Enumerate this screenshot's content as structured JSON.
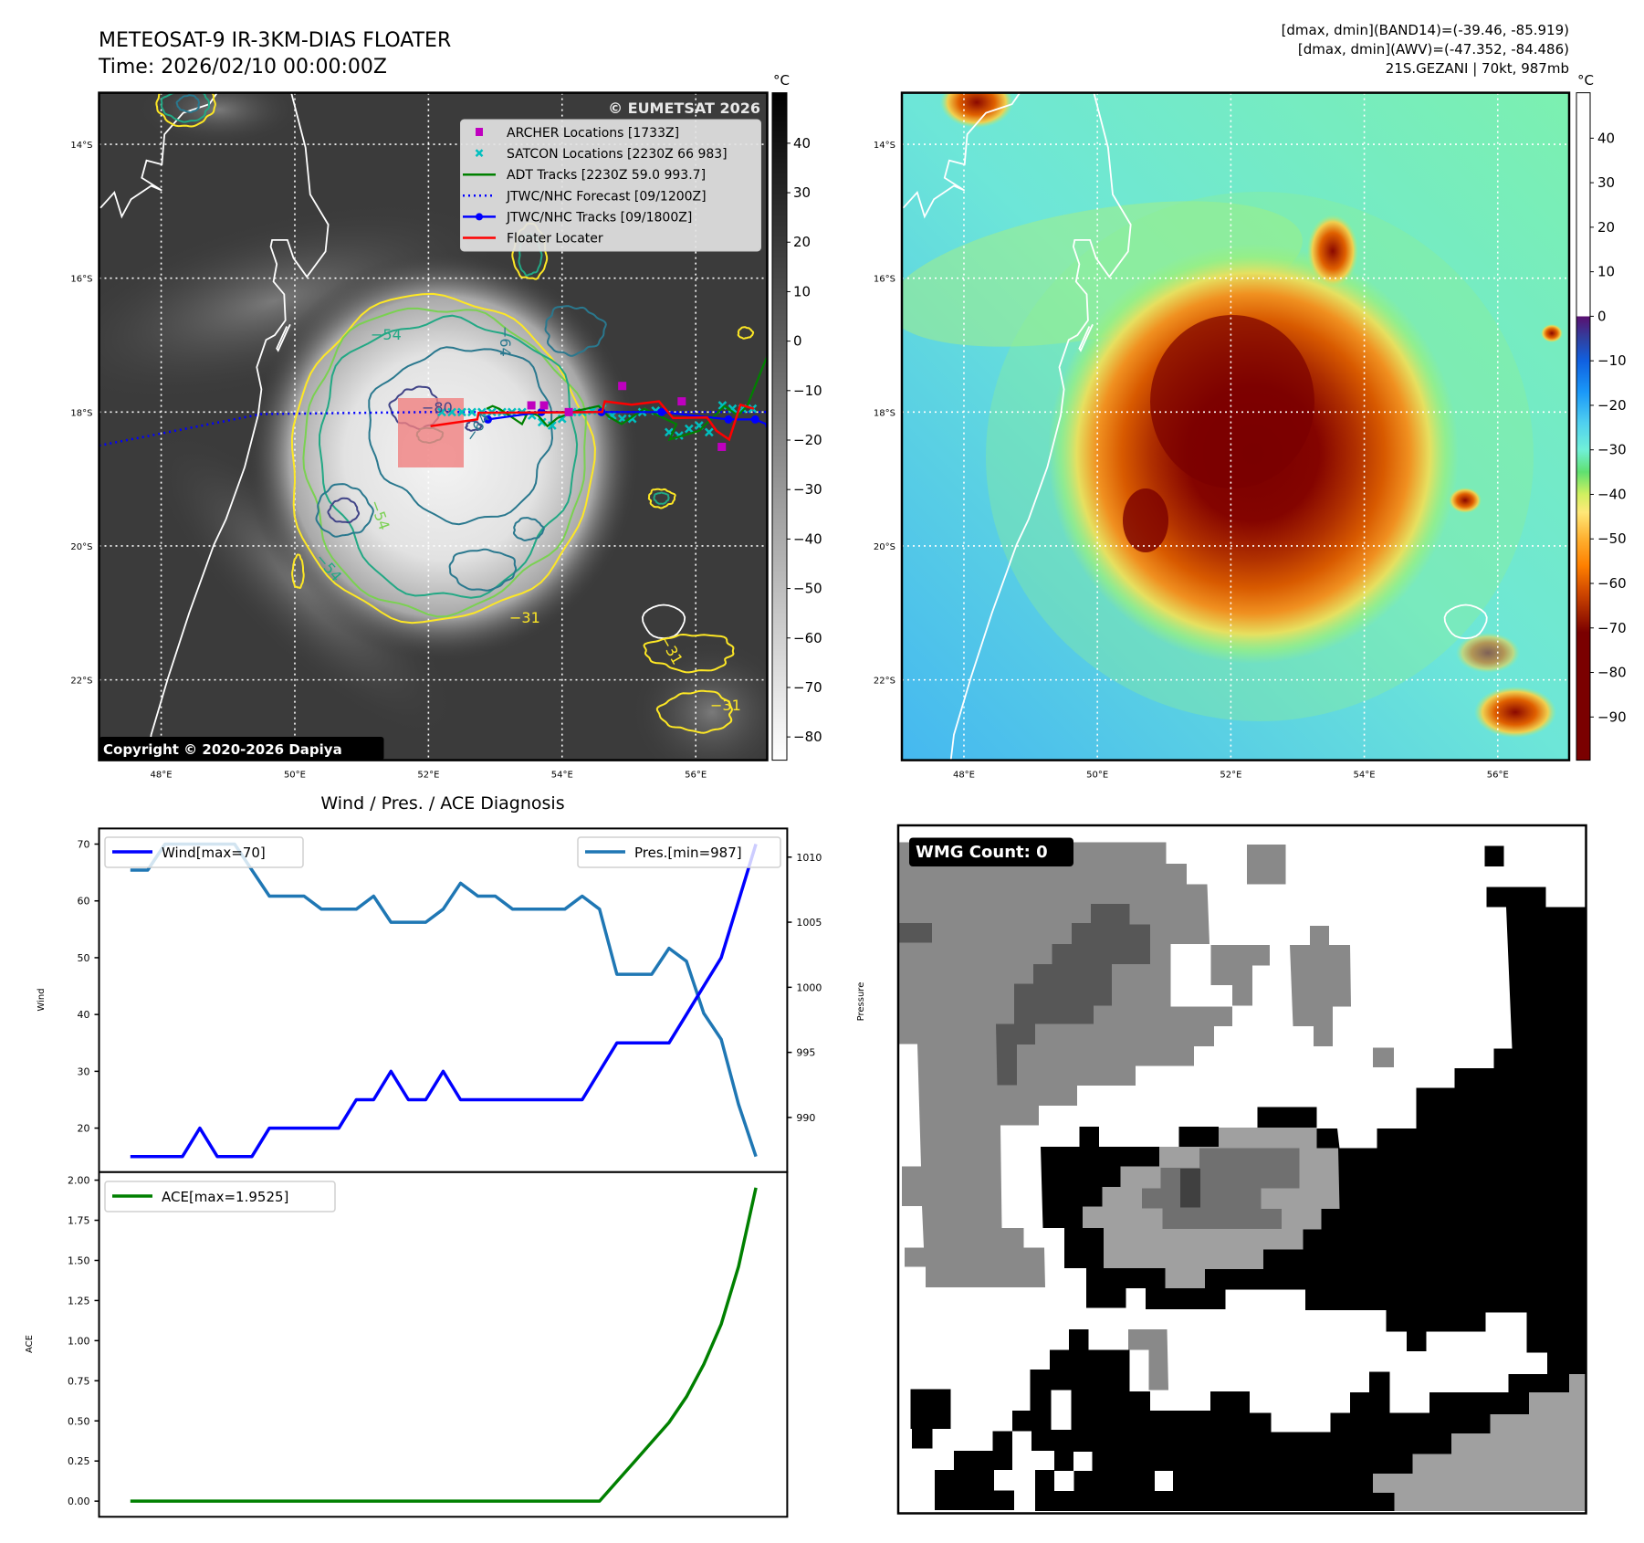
{
  "header": {
    "title_line1": "METEOSAT-9 IR-3KM-DIAS FLOATER",
    "title_line2": "Time: 2026/02/10 00:00:00Z",
    "info_lines": [
      "[dmax, dmin](BAND14)=(-39.46, -85.919)",
      "[dmax, dmin](AWV)=(-47.352, -84.486)",
      "21S.GEZANI | 70kt, 987mb"
    ]
  },
  "maps": {
    "extent": {
      "lon": [
        47.07,
        57.07
      ],
      "lat": [
        -23.2,
        -13.23
      ]
    },
    "lon_ticks": [
      {
        "v": 48,
        "label": "48°E"
      },
      {
        "v": 50,
        "label": "50°E"
      },
      {
        "v": 52,
        "label": "52°E"
      },
      {
        "v": 54,
        "label": "54°E"
      },
      {
        "v": 56,
        "label": "56°E"
      }
    ],
    "lat_ticks": [
      {
        "v": -14,
        "label": "14°S"
      },
      {
        "v": -16,
        "label": "16°S"
      },
      {
        "v": -18,
        "label": "18°S"
      },
      {
        "v": -20,
        "label": "20°S"
      },
      {
        "v": -22,
        "label": "22°S"
      }
    ]
  },
  "left_map": {
    "watermark": "© EUMETSAT 2026",
    "copyright": "Copyright © 2020-2026 Dapiya",
    "contour_labels": [
      "−54",
      "−64",
      "−64",
      "−54",
      "−54",
      "−31",
      "−31",
      "−31",
      "−80"
    ],
    "legend": [
      {
        "label": "ARCHER Locations [1733Z]",
        "marker": "square",
        "color": "#bf00bf"
      },
      {
        "label": "SATCON Locations [2230Z 66 983]",
        "marker": "x",
        "color": "#00bfbf"
      },
      {
        "label": "ADT Tracks [2230Z 59.0 993.7]",
        "marker": "line",
        "color": "#008000"
      },
      {
        "label": "JTWC/NHC Forecast [09/1200Z]",
        "marker": "dotted",
        "color": "#0000ff"
      },
      {
        "label": "JTWC/NHC Tracks [09/1800Z]",
        "marker": "line-dot",
        "color": "#0000ff"
      },
      {
        "label": "Floater Locater",
        "marker": "line",
        "color": "#ff0000"
      }
    ],
    "colorbar": {
      "unit": "°C",
      "range": [
        -84.7,
        50.2
      ],
      "ticks": [
        {
          "v": 40,
          "label": "40"
        },
        {
          "v": 30,
          "label": "30"
        },
        {
          "v": 20,
          "label": "20"
        },
        {
          "v": 10,
          "label": "10"
        },
        {
          "v": 0,
          "label": "0"
        },
        {
          "v": -10,
          "label": "−10"
        },
        {
          "v": -20,
          "label": "−20"
        },
        {
          "v": -30,
          "label": "−30"
        },
        {
          "v": -40,
          "label": "−40"
        },
        {
          "v": -50,
          "label": "−50"
        },
        {
          "v": -60,
          "label": "−60"
        },
        {
          "v": -70,
          "label": "−70"
        },
        {
          "v": -80,
          "label": "−80"
        }
      ]
    },
    "archer": [
      [
        53.54,
        -17.9
      ],
      [
        53.73,
        -17.9
      ],
      [
        54.1,
        -18.0
      ],
      [
        54.9,
        -17.61
      ],
      [
        55.79,
        -17.84
      ],
      [
        56.39,
        -18.52
      ]
    ],
    "satcon": [
      [
        52.2,
        -18.0
      ],
      [
        52.35,
        -18.0
      ],
      [
        52.5,
        -18.0
      ],
      [
        52.65,
        -18.0
      ],
      [
        52.8,
        -18.0
      ],
      [
        52.95,
        -18.0
      ],
      [
        53.1,
        -18.0
      ],
      [
        53.25,
        -18.0
      ],
      [
        53.4,
        -18.0
      ],
      [
        53.55,
        -18.05
      ],
      [
        53.7,
        -18.15
      ],
      [
        53.85,
        -18.2
      ],
      [
        54.0,
        -18.1
      ],
      [
        54.15,
        -18.0
      ],
      [
        54.3,
        -18.0
      ],
      [
        54.45,
        -17.98
      ],
      [
        54.6,
        -17.95
      ],
      [
        54.75,
        -18.05
      ],
      [
        54.9,
        -18.1
      ],
      [
        55.05,
        -18.1
      ],
      [
        55.2,
        -18.0
      ],
      [
        55.4,
        -17.98
      ],
      [
        55.6,
        -18.3
      ],
      [
        55.75,
        -18.35
      ],
      [
        55.9,
        -18.25
      ],
      [
        56.05,
        -18.2
      ],
      [
        56.2,
        -18.3
      ],
      [
        56.4,
        -17.9
      ],
      [
        56.55,
        -17.95
      ],
      [
        56.7,
        -17.95
      ],
      [
        56.85,
        -17.95
      ]
    ],
    "adt": [
      [
        52.87,
        -17.95
      ],
      [
        52.96,
        -17.91
      ],
      [
        53.06,
        -17.95
      ],
      [
        53.4,
        -18.18
      ],
      [
        53.49,
        -18.0
      ],
      [
        53.64,
        -18.05
      ],
      [
        53.78,
        -18.21
      ],
      [
        53.93,
        -18.09
      ],
      [
        54.22,
        -17.98
      ],
      [
        54.55,
        -17.91
      ],
      [
        54.7,
        -18.07
      ],
      [
        54.89,
        -18.18
      ],
      [
        55.23,
        -17.95
      ],
      [
        55.71,
        -18.18
      ],
      [
        55.61,
        -18.41
      ],
      [
        56.05,
        -18.28
      ],
      [
        56.43,
        -17.91
      ],
      [
        56.63,
        -18.05
      ],
      [
        56.77,
        -17.91
      ],
      [
        57.01,
        -17.31
      ],
      [
        57.1,
        -17.1
      ]
    ],
    "jtwc_forecast": [
      [
        47.07,
        -18.5
      ],
      [
        49.5,
        -18.03
      ],
      [
        52.0,
        -18.0
      ],
      [
        57.07,
        -18.0
      ]
    ],
    "jtwc_track": [
      [
        52.89,
        -18.11
      ],
      [
        53.69,
        -18.0
      ],
      [
        54.59,
        -18.0
      ],
      [
        55.49,
        -18.0
      ],
      [
        56.49,
        -18.11
      ],
      [
        56.89,
        -18.11
      ],
      [
        57.1,
        -18.2
      ]
    ],
    "floater": [
      [
        52.03,
        -18.21
      ],
      [
        52.73,
        -18.11
      ],
      [
        52.75,
        -18.01
      ],
      [
        54.6,
        -18.0
      ],
      [
        54.64,
        -17.84
      ],
      [
        55.04,
        -17.89
      ],
      [
        55.45,
        -17.84
      ],
      [
        55.66,
        -18.09
      ],
      [
        56.17,
        -18.08
      ],
      [
        56.31,
        -18.28
      ],
      [
        56.5,
        -18.41
      ],
      [
        56.67,
        -17.89
      ],
      [
        56.87,
        -17.95
      ]
    ]
  },
  "right_map": {
    "colorbar": {
      "unit": "°C",
      "range": [
        -99.7,
        50.2
      ],
      "ticks": [
        {
          "v": 40,
          "label": "40"
        },
        {
          "v": 30,
          "label": "30"
        },
        {
          "v": 20,
          "label": "20"
        },
        {
          "v": 10,
          "label": "10"
        },
        {
          "v": 0,
          "label": "0"
        },
        {
          "v": -10,
          "label": "−10"
        },
        {
          "v": -20,
          "label": "−20"
        },
        {
          "v": -30,
          "label": "−30"
        },
        {
          "v": -40,
          "label": "−40"
        },
        {
          "v": -50,
          "label": "−50"
        },
        {
          "v": -60,
          "label": "−60"
        },
        {
          "v": -70,
          "label": "−70"
        },
        {
          "v": -80,
          "label": "−80"
        },
        {
          "v": -90,
          "label": "−90"
        }
      ]
    }
  },
  "chart_data": {
    "type": "line",
    "title": "Wind / Pres. / ACE Diagnosis",
    "x": [
      0,
      1,
      2,
      3,
      4,
      5,
      6,
      7,
      8,
      9,
      10,
      11,
      12,
      13,
      14,
      15,
      16,
      17,
      18,
      19,
      20,
      21,
      22,
      23,
      24,
      25,
      26,
      27,
      28,
      29,
      30,
      31,
      32,
      33,
      34,
      35,
      36
    ],
    "xlim": [
      -1.8,
      37.8
    ],
    "series": [
      {
        "name": "Wind",
        "legend": "Wind[max=70]",
        "axis": "wind",
        "color": "#0000ff",
        "values": [
          15,
          15,
          15,
          15,
          20,
          15,
          15,
          15,
          20,
          20,
          20,
          20,
          20,
          25,
          25,
          30,
          25,
          25,
          30,
          25,
          25,
          25,
          25,
          25,
          25,
          25,
          25,
          30,
          35,
          35,
          35,
          35,
          40,
          45,
          50,
          60,
          70
        ]
      },
      {
        "name": "Pres.",
        "legend": "Pres.[min=987]",
        "axis": "pressure",
        "color": "#1f77b4",
        "values": [
          1009,
          1009,
          1011,
          1011,
          1011,
          1011,
          1011,
          1009,
          1007,
          1007,
          1007,
          1006,
          1006,
          1006,
          1007,
          1005,
          1005,
          1005,
          1006,
          1008,
          1007,
          1007,
          1006,
          1006,
          1006,
          1006,
          1007,
          1006,
          1001,
          1001,
          1001,
          1003,
          1002,
          998,
          996,
          991,
          987
        ]
      },
      {
        "name": "ACE",
        "legend": "ACE[max=1.9525]",
        "axis": "ace",
        "color": "#008000",
        "values": [
          0,
          0,
          0,
          0,
          0,
          0,
          0,
          0,
          0,
          0,
          0,
          0,
          0,
          0,
          0,
          0,
          0,
          0,
          0,
          0,
          0,
          0,
          0,
          0,
          0,
          0,
          0,
          0,
          0.1225,
          0.245,
          0.3675,
          0.49,
          0.65,
          0.8525,
          1.1025,
          1.4625,
          1.9525
        ]
      }
    ],
    "axes": {
      "wind": {
        "label": "Wind",
        "ylim": [
          12.25,
          72.75
        ],
        "ticks": [
          {
            "v": 20,
            "label": "20"
          },
          {
            "v": 30,
            "label": "30"
          },
          {
            "v": 40,
            "label": "40"
          },
          {
            "v": 50,
            "label": "50"
          },
          {
            "v": 60,
            "label": "60"
          },
          {
            "v": 70,
            "label": "70"
          }
        ]
      },
      "pressure": {
        "label": "Pressure",
        "ylim": [
          985.8,
          1012.2
        ],
        "ticks": [
          {
            "v": 990,
            "label": "990"
          },
          {
            "v": 995,
            "label": "995"
          },
          {
            "v": 1000,
            "label": "1000"
          },
          {
            "v": 1005,
            "label": "1005"
          },
          {
            "v": 1010,
            "label": "1010"
          }
        ]
      },
      "ace": {
        "label": "ACE",
        "ylim": [
          -0.0976,
          2.05
        ],
        "ticks": [
          {
            "v": 0,
            "label": "0.00"
          },
          {
            "v": 0.25,
            "label": "0.25"
          },
          {
            "v": 0.5,
            "label": "0.50"
          },
          {
            "v": 0.75,
            "label": "0.75"
          },
          {
            "v": 1,
            "label": "1.00"
          },
          {
            "v": 1.25,
            "label": "1.25"
          },
          {
            "v": 1.5,
            "label": "1.50"
          },
          {
            "v": 1.75,
            "label": "1.75"
          },
          {
            "v": 2,
            "label": "2.00"
          }
        ]
      }
    }
  },
  "wmg": {
    "label": "WMG Count: 0"
  }
}
